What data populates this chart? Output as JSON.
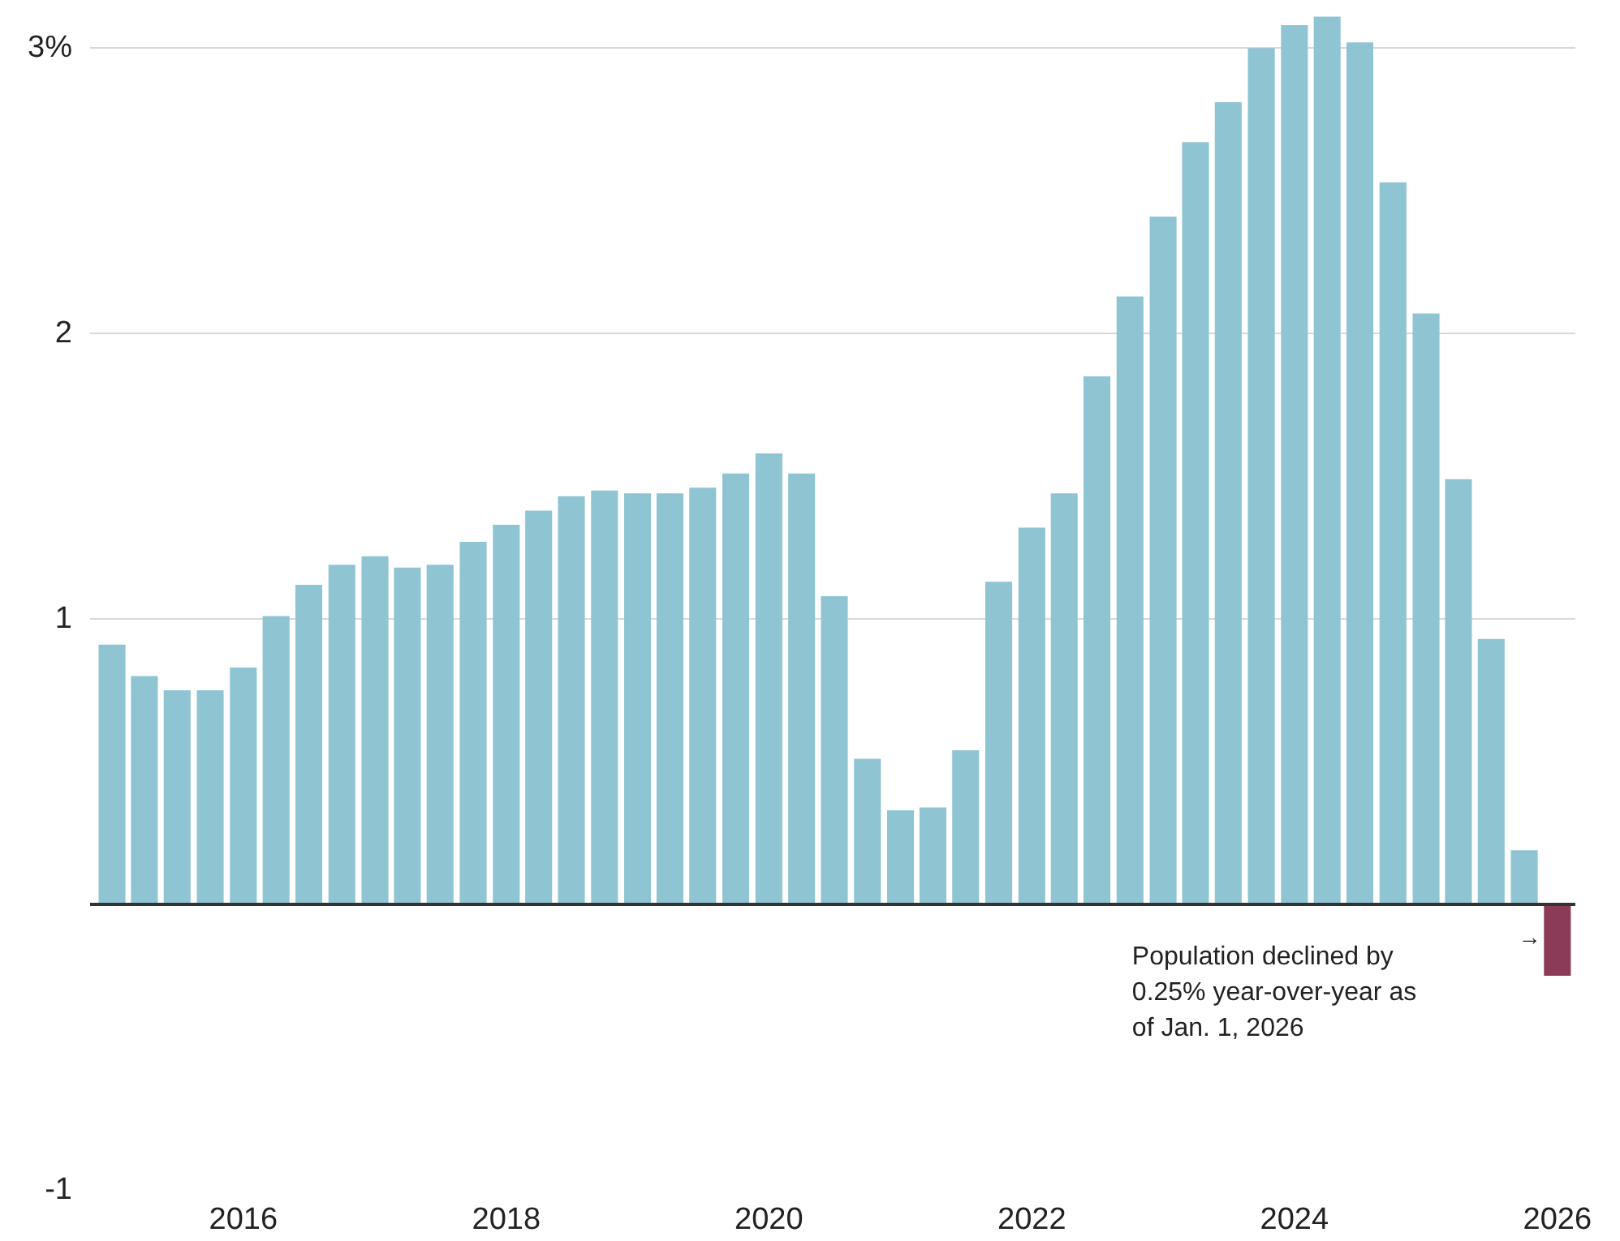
{
  "chart_data": {
    "type": "bar",
    "x": [
      "2015-01-01",
      "2015-04-01",
      "2015-07-01",
      "2015-10-01",
      "2016-01-01",
      "2016-04-01",
      "2016-07-01",
      "2016-10-01",
      "2017-01-01",
      "2017-04-01",
      "2017-07-01",
      "2017-10-01",
      "2018-01-01",
      "2018-04-01",
      "2018-07-01",
      "2018-10-01",
      "2019-01-01",
      "2019-04-01",
      "2019-07-01",
      "2019-10-01",
      "2020-01-01",
      "2020-04-01",
      "2020-07-01",
      "2020-10-01",
      "2021-01-01",
      "2021-04-01",
      "2021-07-01",
      "2021-10-01",
      "2022-01-01",
      "2022-04-01",
      "2022-07-01",
      "2022-10-01",
      "2023-01-01",
      "2023-04-01",
      "2023-07-01",
      "2023-10-01",
      "2024-01-01",
      "2024-04-01",
      "2024-07-01",
      "2024-10-01",
      "2025-01-01",
      "2025-04-01",
      "2025-07-01",
      "2025-10-01",
      "2026-01-01"
    ],
    "values": [
      0.91,
      0.8,
      0.75,
      0.75,
      0.83,
      1.01,
      1.12,
      1.19,
      1.22,
      1.18,
      1.19,
      1.27,
      1.33,
      1.38,
      1.43,
      1.45,
      1.44,
      1.44,
      1.46,
      1.51,
      1.58,
      1.51,
      1.08,
      0.51,
      0.33,
      0.34,
      0.54,
      1.13,
      1.32,
      1.44,
      1.85,
      2.13,
      2.41,
      2.67,
      2.81,
      3.0,
      3.08,
      3.11,
      3.02,
      2.53,
      2.07,
      1.49,
      0.93,
      0.19,
      -0.25
    ],
    "colors": [
      "#8fc5d3",
      "#8fc5d3",
      "#8fc5d3",
      "#8fc5d3",
      "#8fc5d3",
      "#8fc5d3",
      "#8fc5d3",
      "#8fc5d3",
      "#8fc5d3",
      "#8fc5d3",
      "#8fc5d3",
      "#8fc5d3",
      "#8fc5d3",
      "#8fc5d3",
      "#8fc5d3",
      "#8fc5d3",
      "#8fc5d3",
      "#8fc5d3",
      "#8fc5d3",
      "#8fc5d3",
      "#8fc5d3",
      "#8fc5d3",
      "#8fc5d3",
      "#8fc5d3",
      "#8fc5d3",
      "#8fc5d3",
      "#8fc5d3",
      "#8fc5d3",
      "#8fc5d3",
      "#8fc5d3",
      "#8fc5d3",
      "#8fc5d3",
      "#8fc5d3",
      "#8fc5d3",
      "#8fc5d3",
      "#8fc5d3",
      "#8fc5d3",
      "#8fc5d3",
      "#8fc5d3",
      "#8fc5d3",
      "#8fc5d3",
      "#8fc5d3",
      "#8fc5d3",
      "#8fc5d3",
      "#8b3a58"
    ],
    "xlim": [
      "2014-11-01",
      "2026-02-20"
    ],
    "xticks": [
      {
        "value": "2016-01-01",
        "label": "2016"
      },
      {
        "value": "2018-01-01",
        "label": "2018"
      },
      {
        "value": "2020-01-01",
        "label": "2020"
      },
      {
        "value": "2022-01-01",
        "label": "2022"
      },
      {
        "value": "2024-01-01",
        "label": "2024"
      },
      {
        "value": "2026-01-01",
        "label": "2026"
      }
    ],
    "ylim": [
      -1,
      3.12
    ],
    "yticks": [
      -1,
      {
        "value": 0,
        "label": null
      },
      1,
      2,
      {
        "value": 3,
        "label": "3%"
      }
    ],
    "grid": "y",
    "annotations": [
      "→",
      "Population declined by 0.25% year-over-year as of Jan. 1, 2026"
    ]
  }
}
